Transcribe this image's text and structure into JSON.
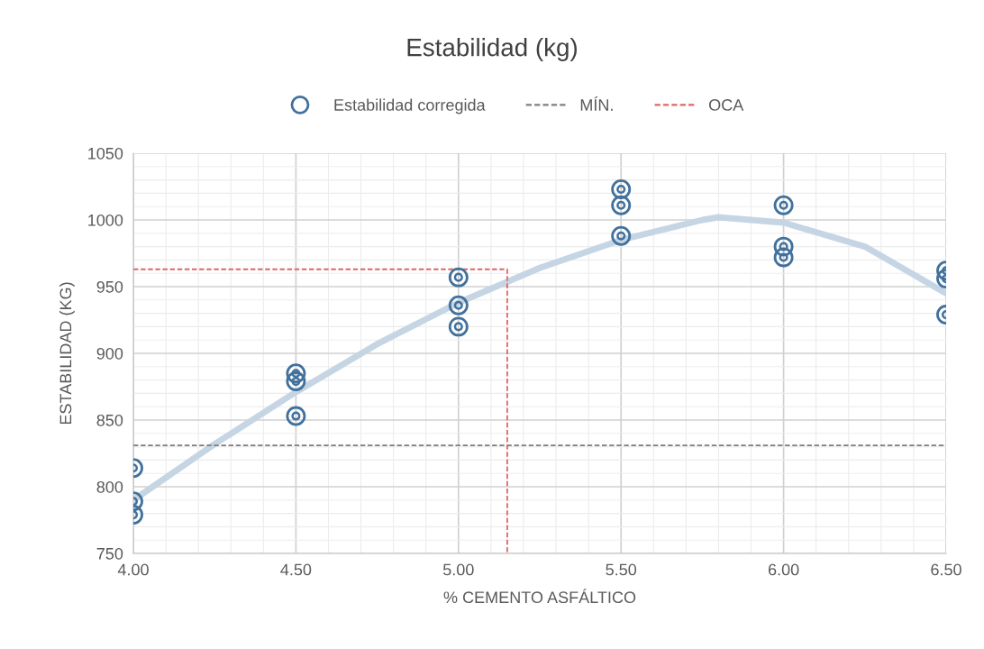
{
  "chart_data": {
    "type": "scatter",
    "title": "Estabilidad (kg)",
    "xlabel": "% CEMENTO ASFÁLTICO",
    "ylabel": "ESTABILIDAD (KG)",
    "xlim": [
      4.0,
      6.5
    ],
    "xticks": [
      {
        "value": 4.0,
        "label": "4.00"
      },
      {
        "value": 4.5,
        "label": "4.50"
      },
      {
        "value": 5.0,
        "label": "5.00"
      },
      {
        "value": 5.5,
        "label": "5.50"
      },
      {
        "value": 6.0,
        "label": "6.00"
      },
      {
        "value": 6.5,
        "label": "6.50"
      }
    ],
    "ylim": [
      750,
      1050
    ],
    "yticks": [
      750,
      800,
      850,
      900,
      950,
      1000,
      1050
    ],
    "grid": true,
    "legend": "top",
    "marker": "circle",
    "series": [
      {
        "name": "Estabilidad corregida",
        "color": "#41719c",
        "x": [
          4.0,
          4.0,
          4.0,
          4.5,
          4.5,
          4.5,
          5.0,
          5.0,
          5.0,
          5.5,
          5.5,
          5.5,
          6.0,
          6.0,
          6.0,
          6.5,
          6.5,
          6.5
        ],
        "values": [
          814,
          789,
          779,
          885,
          879,
          853,
          957,
          936,
          920,
          1023,
          1011,
          988,
          1011,
          980,
          972,
          962,
          956,
          929
        ]
      },
      {
        "type": "line",
        "color": "#c5d5e4",
        "marker": "none",
        "x": [
          4.0,
          4.25,
          4.5,
          4.75,
          5.0,
          5.25,
          5.5,
          5.75,
          5.8,
          6.0,
          6.25,
          6.5
        ],
        "values": [
          790,
          832,
          871,
          907,
          938,
          964,
          985,
          1000,
          1002,
          998,
          980,
          945
        ]
      },
      {
        "name": "MÍN.",
        "type": "line",
        "color": "#7f7f7f",
        "marker": "none",
        "line_style": "dashed",
        "x": [
          4.0,
          6.5
        ],
        "values": [
          831,
          831
        ]
      },
      {
        "name": "OCA",
        "type": "line",
        "color": "#e06666",
        "marker": "none",
        "line_style": "dashed",
        "x": [
          4.0,
          5.15,
          5.15
        ],
        "values": [
          963,
          963,
          750
        ]
      }
    ]
  }
}
